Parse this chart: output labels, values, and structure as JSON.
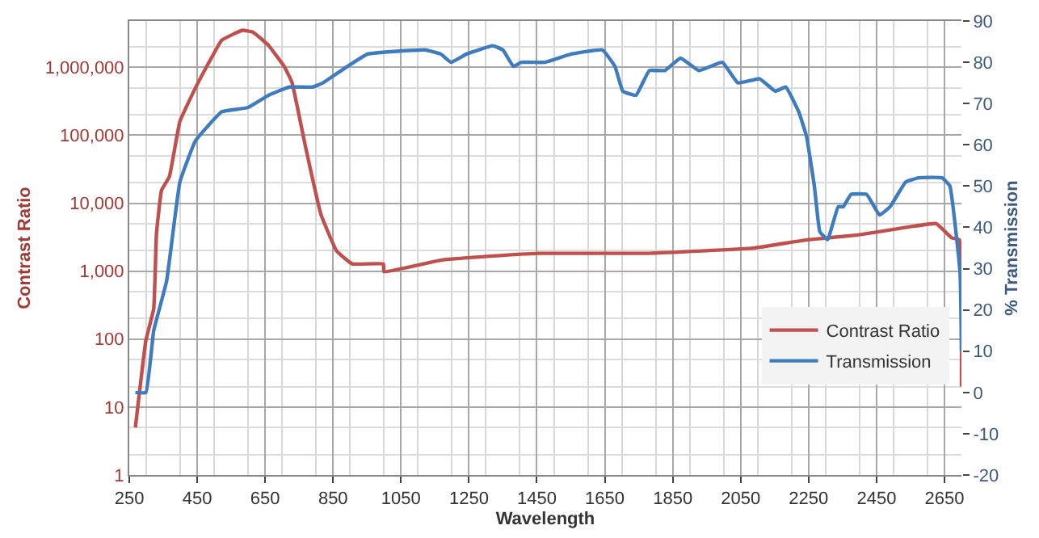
{
  "chart_data": {
    "type": "line",
    "xlabel": "Wavelength",
    "ylabel": "Contrast Ratio",
    "y2label": "% Transmission",
    "log": "y",
    "grid": true,
    "legend": "bottom right",
    "line_style": "solid",
    "marker": "none",
    "xlim": [
      250,
      2700
    ],
    "xticks": [
      250,
      450,
      650,
      850,
      1050,
      1250,
      1450,
      1650,
      1850,
      2050,
      2250,
      2450,
      2650
    ],
    "ylim": [
      1,
      4800000
    ],
    "yticks": [
      1,
      10,
      100,
      {
        "value": 1000,
        "label": "1,000"
      },
      {
        "value": 10000,
        "label": "10,000"
      },
      {
        "value": 100000,
        "label": "100,000"
      },
      {
        "value": 1000000,
        "label": "1,000,000"
      }
    ],
    "y2lim": [
      -20,
      90
    ],
    "y2ticks": [
      -20,
      -10,
      0,
      10,
      20,
      30,
      40,
      50,
      60,
      70,
      80,
      90
    ],
    "series": [
      {
        "name": "Contrast Ratio",
        "color": "#c0504d",
        "x": [
          268,
          299,
          322,
          330,
          345,
          368,
          399,
          445,
          491,
          522,
          583,
          614,
          660,
          706,
          729,
          768,
          814,
          860,
          906,
          998,
          1000,
          1167,
          1320,
          1459,
          1781,
          2088,
          2241,
          2395,
          2549,
          2626,
          2671,
          2694,
          2700
        ],
        "values": [
          5,
          96,
          280,
          3500,
          15500,
          24500,
          160000,
          500000,
          1350000,
          2500000,
          3500000,
          3300000,
          2100000,
          1030000,
          600000,
          71000,
          6900,
          2000,
          1280,
          1280,
          980,
          1450,
          1670,
          1830,
          1830,
          2180,
          2870,
          3400,
          4500,
          5000,
          3100,
          2900,
          20
        ]
      },
      {
        "name": "Transmission",
        "color": "#3f7cbf",
        "axis": "y2",
        "x": [
          268,
          299,
          322,
          360,
          399,
          445,
          522,
          598,
          660,
          721,
          790,
          820,
          874,
          952,
          1121,
          1167,
          1197,
          1243,
          1320,
          1350,
          1381,
          1404,
          1474,
          1551,
          1643,
          1680,
          1703,
          1742,
          1781,
          1827,
          1873,
          1927,
          1996,
          2042,
          2106,
          2152,
          2183,
          2221,
          2244,
          2267,
          2283,
          2306,
          2337,
          2352,
          2375,
          2421,
          2459,
          2490,
          2536,
          2574,
          2643,
          2666,
          2696,
          2700
        ],
        "values": [
          0,
          0,
          15,
          27,
          51,
          61,
          68,
          69,
          72,
          74,
          74,
          75,
          78,
          82,
          83,
          82,
          80,
          82,
          84,
          83,
          79,
          80,
          80,
          82,
          83,
          79,
          73,
          72,
          78,
          78,
          81,
          78,
          80,
          75,
          76,
          73,
          74,
          68,
          62,
          50,
          39,
          37,
          45,
          45,
          48,
          48,
          43,
          45,
          51,
          52,
          52,
          50,
          29,
          10
        ]
      }
    ]
  }
}
